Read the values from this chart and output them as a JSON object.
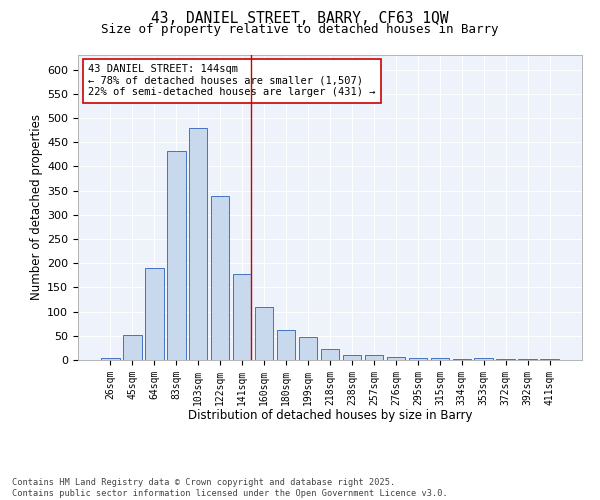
{
  "title": "43, DANIEL STREET, BARRY, CF63 1QW",
  "subtitle": "Size of property relative to detached houses in Barry",
  "xlabel": "Distribution of detached houses by size in Barry",
  "ylabel": "Number of detached properties",
  "categories": [
    "26sqm",
    "45sqm",
    "64sqm",
    "83sqm",
    "103sqm",
    "122sqm",
    "141sqm",
    "160sqm",
    "180sqm",
    "199sqm",
    "218sqm",
    "238sqm",
    "257sqm",
    "276sqm",
    "295sqm",
    "315sqm",
    "334sqm",
    "353sqm",
    "372sqm",
    "392sqm",
    "411sqm"
  ],
  "values": [
    5,
    52,
    190,
    432,
    480,
    338,
    177,
    110,
    62,
    47,
    22,
    10,
    11,
    6,
    5,
    4,
    3,
    5,
    3,
    3,
    3
  ],
  "bar_color": "#c9d9ed",
  "bar_edge_color": "#4472c4",
  "vline_color": "#cc0000",
  "annotation_title": "43 DANIEL STREET: 144sqm",
  "annotation_line1": "← 78% of detached houses are smaller (1,507)",
  "annotation_line2": "22% of semi-detached houses are larger (431) →",
  "annotation_box_color": "#ffffff",
  "annotation_box_edge": "#cc0000",
  "footer_line1": "Contains HM Land Registry data © Crown copyright and database right 2025.",
  "footer_line2": "Contains public sector information licensed under the Open Government Licence v3.0.",
  "bg_color": "#eef2fb",
  "ylim": [
    0,
    630
  ],
  "yticks": [
    0,
    50,
    100,
    150,
    200,
    250,
    300,
    350,
    400,
    450,
    500,
    550,
    600
  ]
}
